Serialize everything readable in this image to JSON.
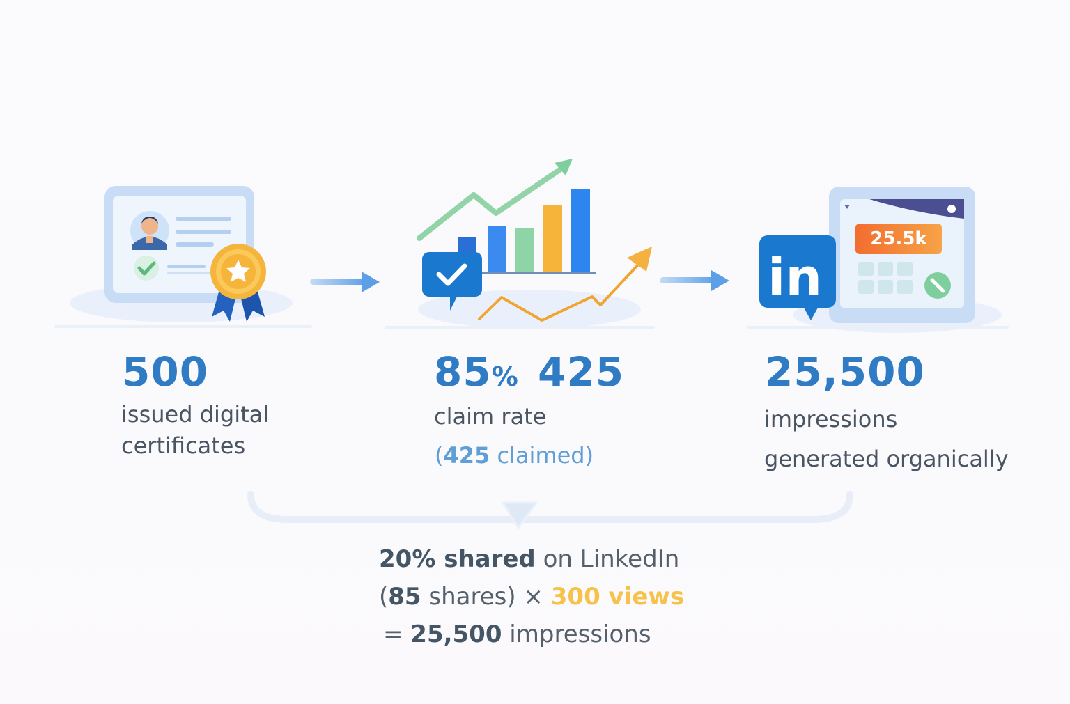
{
  "steps": [
    {
      "id": "issued",
      "value": "500",
      "label_line1": "issued digital",
      "label_line2": "certificates",
      "icon": "certificate-icon"
    },
    {
      "id": "claimed",
      "value_pct": "85",
      "value_pct_sign": "%",
      "value_count": "425",
      "label": "claim rate",
      "note_open": "(",
      "note_number": "425",
      "note_word": " claimed",
      "note_close": ")",
      "icon": "growth-chart-icon"
    },
    {
      "id": "impressions",
      "value": "25,500",
      "label_line1": "impressions",
      "label_line2": "generated organically",
      "icon": "linkedin-dashboard-icon",
      "dashboard_badge": "25.5k"
    }
  ],
  "formula": {
    "line1_bold": "20% shared",
    "line1_rest": " on LinkedIn",
    "line2_open": "(",
    "line2_number": "85",
    "line2_word": " shares",
    "line2_close": ")",
    "line2_times": " × ",
    "line2_views": "300 views",
    "line3_eq": "= ",
    "line3_number": "25,500",
    "line3_word": " impressions"
  },
  "colors": {
    "primary_blue": "#2f7cc4",
    "linkedin_blue": "#1a78cf",
    "accent_yellow": "#f6c24a",
    "accent_green": "#7fcf9e",
    "badge_orange": "#f5803a"
  }
}
